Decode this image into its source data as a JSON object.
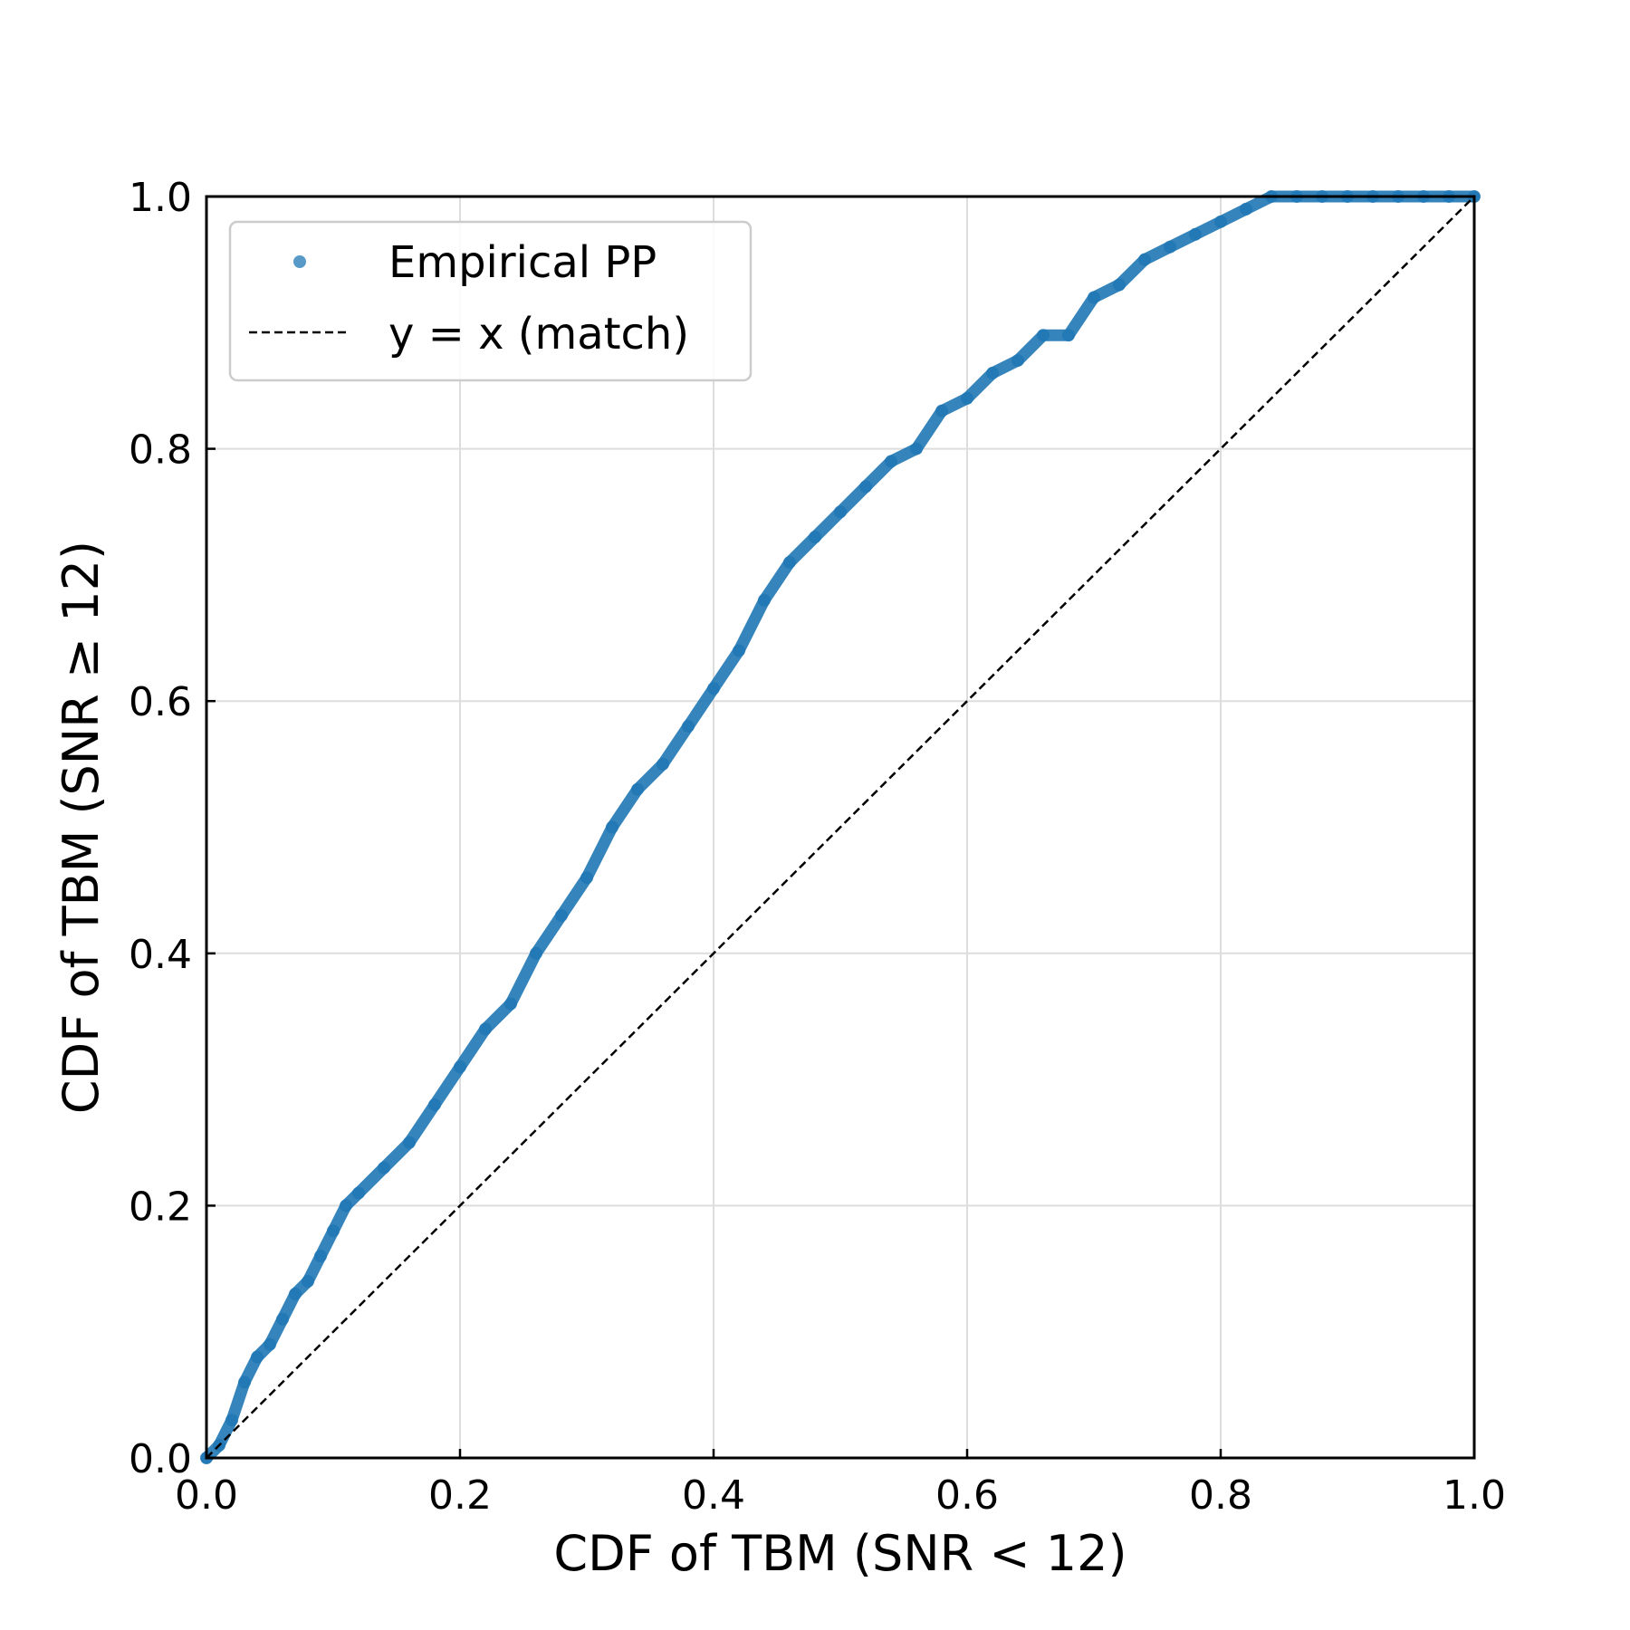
{
  "chart_data": {
    "type": "scatter",
    "title": "",
    "xlabel": "CDF of TBM (SNR < 12)",
    "ylabel": "CDF of TBM (SNR ≥ 12)",
    "xlim": [
      0.0,
      1.0
    ],
    "ylim": [
      0.0,
      1.0
    ],
    "x_ticks": [
      "0.0",
      "0.2",
      "0.4",
      "0.6",
      "0.8",
      "1.0"
    ],
    "y_ticks": [
      "0.0",
      "0.2",
      "0.4",
      "0.6",
      "0.8",
      "1.0"
    ],
    "grid": true,
    "legend": {
      "placement": "top-left",
      "entries": [
        {
          "label": "Empirical PP",
          "marker": "dot",
          "color": "#1f77b4"
        },
        {
          "label": "y = x (match)",
          "marker": "dashed-line",
          "color": "#000000"
        }
      ]
    },
    "series": [
      {
        "name": "Empirical PP",
        "kind": "points",
        "color": "#1f77b4",
        "points": [
          [
            0.0,
            0.0
          ],
          [
            0.01,
            0.01
          ],
          [
            0.02,
            0.03
          ],
          [
            0.03,
            0.06
          ],
          [
            0.04,
            0.08
          ],
          [
            0.05,
            0.09
          ],
          [
            0.06,
            0.11
          ],
          [
            0.07,
            0.13
          ],
          [
            0.08,
            0.14
          ],
          [
            0.09,
            0.16
          ],
          [
            0.1,
            0.18
          ],
          [
            0.11,
            0.2
          ],
          [
            0.12,
            0.21
          ],
          [
            0.14,
            0.23
          ],
          [
            0.16,
            0.25
          ],
          [
            0.18,
            0.28
          ],
          [
            0.2,
            0.31
          ],
          [
            0.22,
            0.34
          ],
          [
            0.24,
            0.36
          ],
          [
            0.26,
            0.4
          ],
          [
            0.28,
            0.43
          ],
          [
            0.3,
            0.46
          ],
          [
            0.32,
            0.5
          ],
          [
            0.34,
            0.53
          ],
          [
            0.36,
            0.55
          ],
          [
            0.38,
            0.58
          ],
          [
            0.4,
            0.61
          ],
          [
            0.42,
            0.64
          ],
          [
            0.44,
            0.68
          ],
          [
            0.46,
            0.71
          ],
          [
            0.48,
            0.73
          ],
          [
            0.5,
            0.75
          ],
          [
            0.52,
            0.77
          ],
          [
            0.54,
            0.79
          ],
          [
            0.56,
            0.8
          ],
          [
            0.58,
            0.83
          ],
          [
            0.6,
            0.84
          ],
          [
            0.62,
            0.86
          ],
          [
            0.64,
            0.87
          ],
          [
            0.66,
            0.89
          ],
          [
            0.68,
            0.89
          ],
          [
            0.7,
            0.92
          ],
          [
            0.72,
            0.93
          ],
          [
            0.74,
            0.95
          ],
          [
            0.76,
            0.96
          ],
          [
            0.78,
            0.97
          ],
          [
            0.8,
            0.98
          ],
          [
            0.82,
            0.99
          ],
          [
            0.84,
            1.0
          ],
          [
            0.86,
            1.0
          ],
          [
            0.88,
            1.0
          ],
          [
            0.9,
            1.0
          ],
          [
            0.92,
            1.0
          ],
          [
            0.94,
            1.0
          ],
          [
            0.96,
            1.0
          ],
          [
            0.98,
            1.0
          ],
          [
            1.0,
            1.0
          ]
        ]
      },
      {
        "name": "y = x (match)",
        "kind": "dashed-line",
        "color": "#000000",
        "points": [
          [
            0.0,
            0.0
          ],
          [
            1.0,
            1.0
          ]
        ]
      }
    ]
  }
}
